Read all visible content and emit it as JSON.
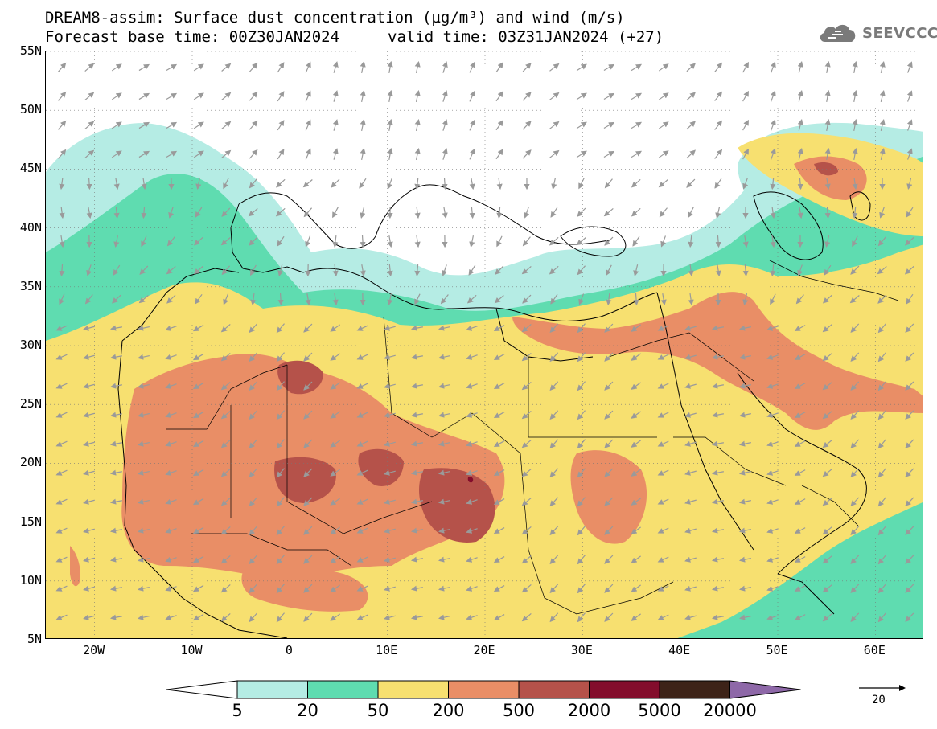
{
  "title": {
    "line1": "DREAM8-assim: Surface dust concentration (µg/m³) and wind (m/s)",
    "line2": "Forecast base time: 00Z30JAN2024",
    "line2b": "valid time: 03Z31JAN2024 (+27)"
  },
  "logo": {
    "text": "SEEVCCC",
    "icon": "cloud-icon"
  },
  "map": {
    "lon_range": [
      -25,
      65
    ],
    "lat_range": [
      5,
      55
    ],
    "lat_labels": [
      "55N",
      "50N",
      "45N",
      "40N",
      "35N",
      "30N",
      "25N",
      "20N",
      "15N",
      "10N",
      "5N"
    ],
    "lat_values": [
      55,
      50,
      45,
      40,
      35,
      30,
      25,
      20,
      15,
      10,
      5
    ],
    "lon_labels": [
      "20W",
      "10W",
      "0",
      "10E",
      "20E",
      "30E",
      "40E",
      "50E",
      "60E"
    ],
    "lon_values": [
      -20,
      -10,
      0,
      10,
      20,
      30,
      40,
      50,
      60
    ],
    "gridlines": "dotted",
    "projection": "cylindrical"
  },
  "colorbar": {
    "labels": [
      "5",
      "20",
      "50",
      "200",
      "500",
      "2000",
      "5000",
      "20000"
    ],
    "colors": [
      "#b5ece4",
      "#5fdcb0",
      "#f7e070",
      "#e98e66",
      "#b5524a",
      "#830d2c",
      "#3d2318",
      "#8e68a8"
    ]
  },
  "wind_legend": {
    "label": "20"
  }
}
